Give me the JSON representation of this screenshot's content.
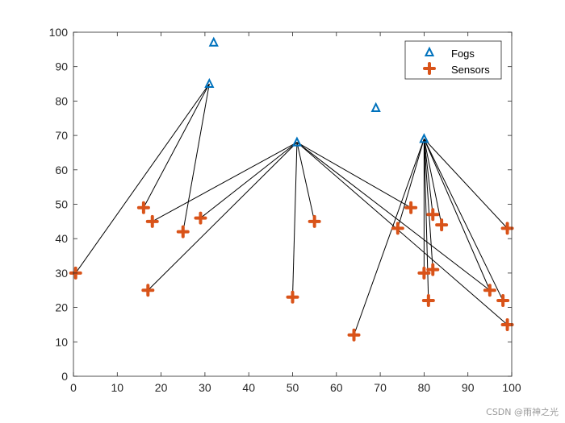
{
  "chart_data": {
    "type": "scatter",
    "title": "",
    "xlabel": "",
    "ylabel": "",
    "xlim": [
      0,
      100
    ],
    "ylim": [
      0,
      100
    ],
    "xticks": [
      0,
      10,
      20,
      30,
      40,
      50,
      60,
      70,
      80,
      90,
      100
    ],
    "yticks": [
      0,
      10,
      20,
      30,
      40,
      50,
      60,
      70,
      80,
      90,
      100
    ],
    "grid": false,
    "legend_position": "top-right",
    "series": [
      {
        "name": "Fogs",
        "marker": "triangle",
        "color": "#0072BD",
        "points": [
          {
            "x": 31,
            "y": 85
          },
          {
            "x": 32,
            "y": 97
          },
          {
            "x": 51,
            "y": 68
          },
          {
            "x": 69,
            "y": 78
          },
          {
            "x": 80,
            "y": 69
          }
        ]
      },
      {
        "name": "Sensors",
        "marker": "plus",
        "color": "#D95319",
        "points": [
          {
            "x": 0.5,
            "y": 30
          },
          {
            "x": 16,
            "y": 49
          },
          {
            "x": 17,
            "y": 25
          },
          {
            "x": 18,
            "y": 45
          },
          {
            "x": 25,
            "y": 42
          },
          {
            "x": 29,
            "y": 46
          },
          {
            "x": 50,
            "y": 23
          },
          {
            "x": 55,
            "y": 45
          },
          {
            "x": 64,
            "y": 12
          },
          {
            "x": 74,
            "y": 43
          },
          {
            "x": 77,
            "y": 49
          },
          {
            "x": 80,
            "y": 30
          },
          {
            "x": 81,
            "y": 22
          },
          {
            "x": 82,
            "y": 31
          },
          {
            "x": 82,
            "y": 47
          },
          {
            "x": 84,
            "y": 44
          },
          {
            "x": 95,
            "y": 25
          },
          {
            "x": 98,
            "y": 22
          },
          {
            "x": 99,
            "y": 15
          },
          {
            "x": 99,
            "y": 43
          }
        ]
      }
    ],
    "links": [
      {
        "from": [
          31,
          85
        ],
        "to": [
          0.5,
          30
        ]
      },
      {
        "from": [
          31,
          85
        ],
        "to": [
          16,
          49
        ]
      },
      {
        "from": [
          31,
          85
        ],
        "to": [
          25,
          42
        ]
      },
      {
        "from": [
          51,
          68
        ],
        "to": [
          17,
          25
        ]
      },
      {
        "from": [
          51,
          68
        ],
        "to": [
          18,
          45
        ]
      },
      {
        "from": [
          51,
          68
        ],
        "to": [
          29,
          46
        ]
      },
      {
        "from": [
          51,
          68
        ],
        "to": [
          50,
          23
        ]
      },
      {
        "from": [
          51,
          68
        ],
        "to": [
          55,
          45
        ]
      },
      {
        "from": [
          51,
          68
        ],
        "to": [
          77,
          49
        ]
      },
      {
        "from": [
          51,
          68
        ],
        "to": [
          95,
          25
        ]
      },
      {
        "from": [
          51,
          68
        ],
        "to": [
          99,
          15
        ]
      },
      {
        "from": [
          80,
          69
        ],
        "to": [
          64,
          12
        ]
      },
      {
        "from": [
          80,
          69
        ],
        "to": [
          74,
          43
        ]
      },
      {
        "from": [
          80,
          69
        ],
        "to": [
          80,
          30
        ]
      },
      {
        "from": [
          80,
          69
        ],
        "to": [
          81,
          22
        ]
      },
      {
        "from": [
          80,
          69
        ],
        "to": [
          82,
          31
        ]
      },
      {
        "from": [
          80,
          69
        ],
        "to": [
          82,
          47
        ]
      },
      {
        "from": [
          80,
          69
        ],
        "to": [
          84,
          44
        ]
      },
      {
        "from": [
          80,
          69
        ],
        "to": [
          95,
          25
        ]
      },
      {
        "from": [
          80,
          69
        ],
        "to": [
          98,
          22
        ]
      },
      {
        "from": [
          80,
          69
        ],
        "to": [
          99,
          43
        ]
      }
    ],
    "link_color": "#000000"
  },
  "watermark": "CSDN @雨神之光"
}
